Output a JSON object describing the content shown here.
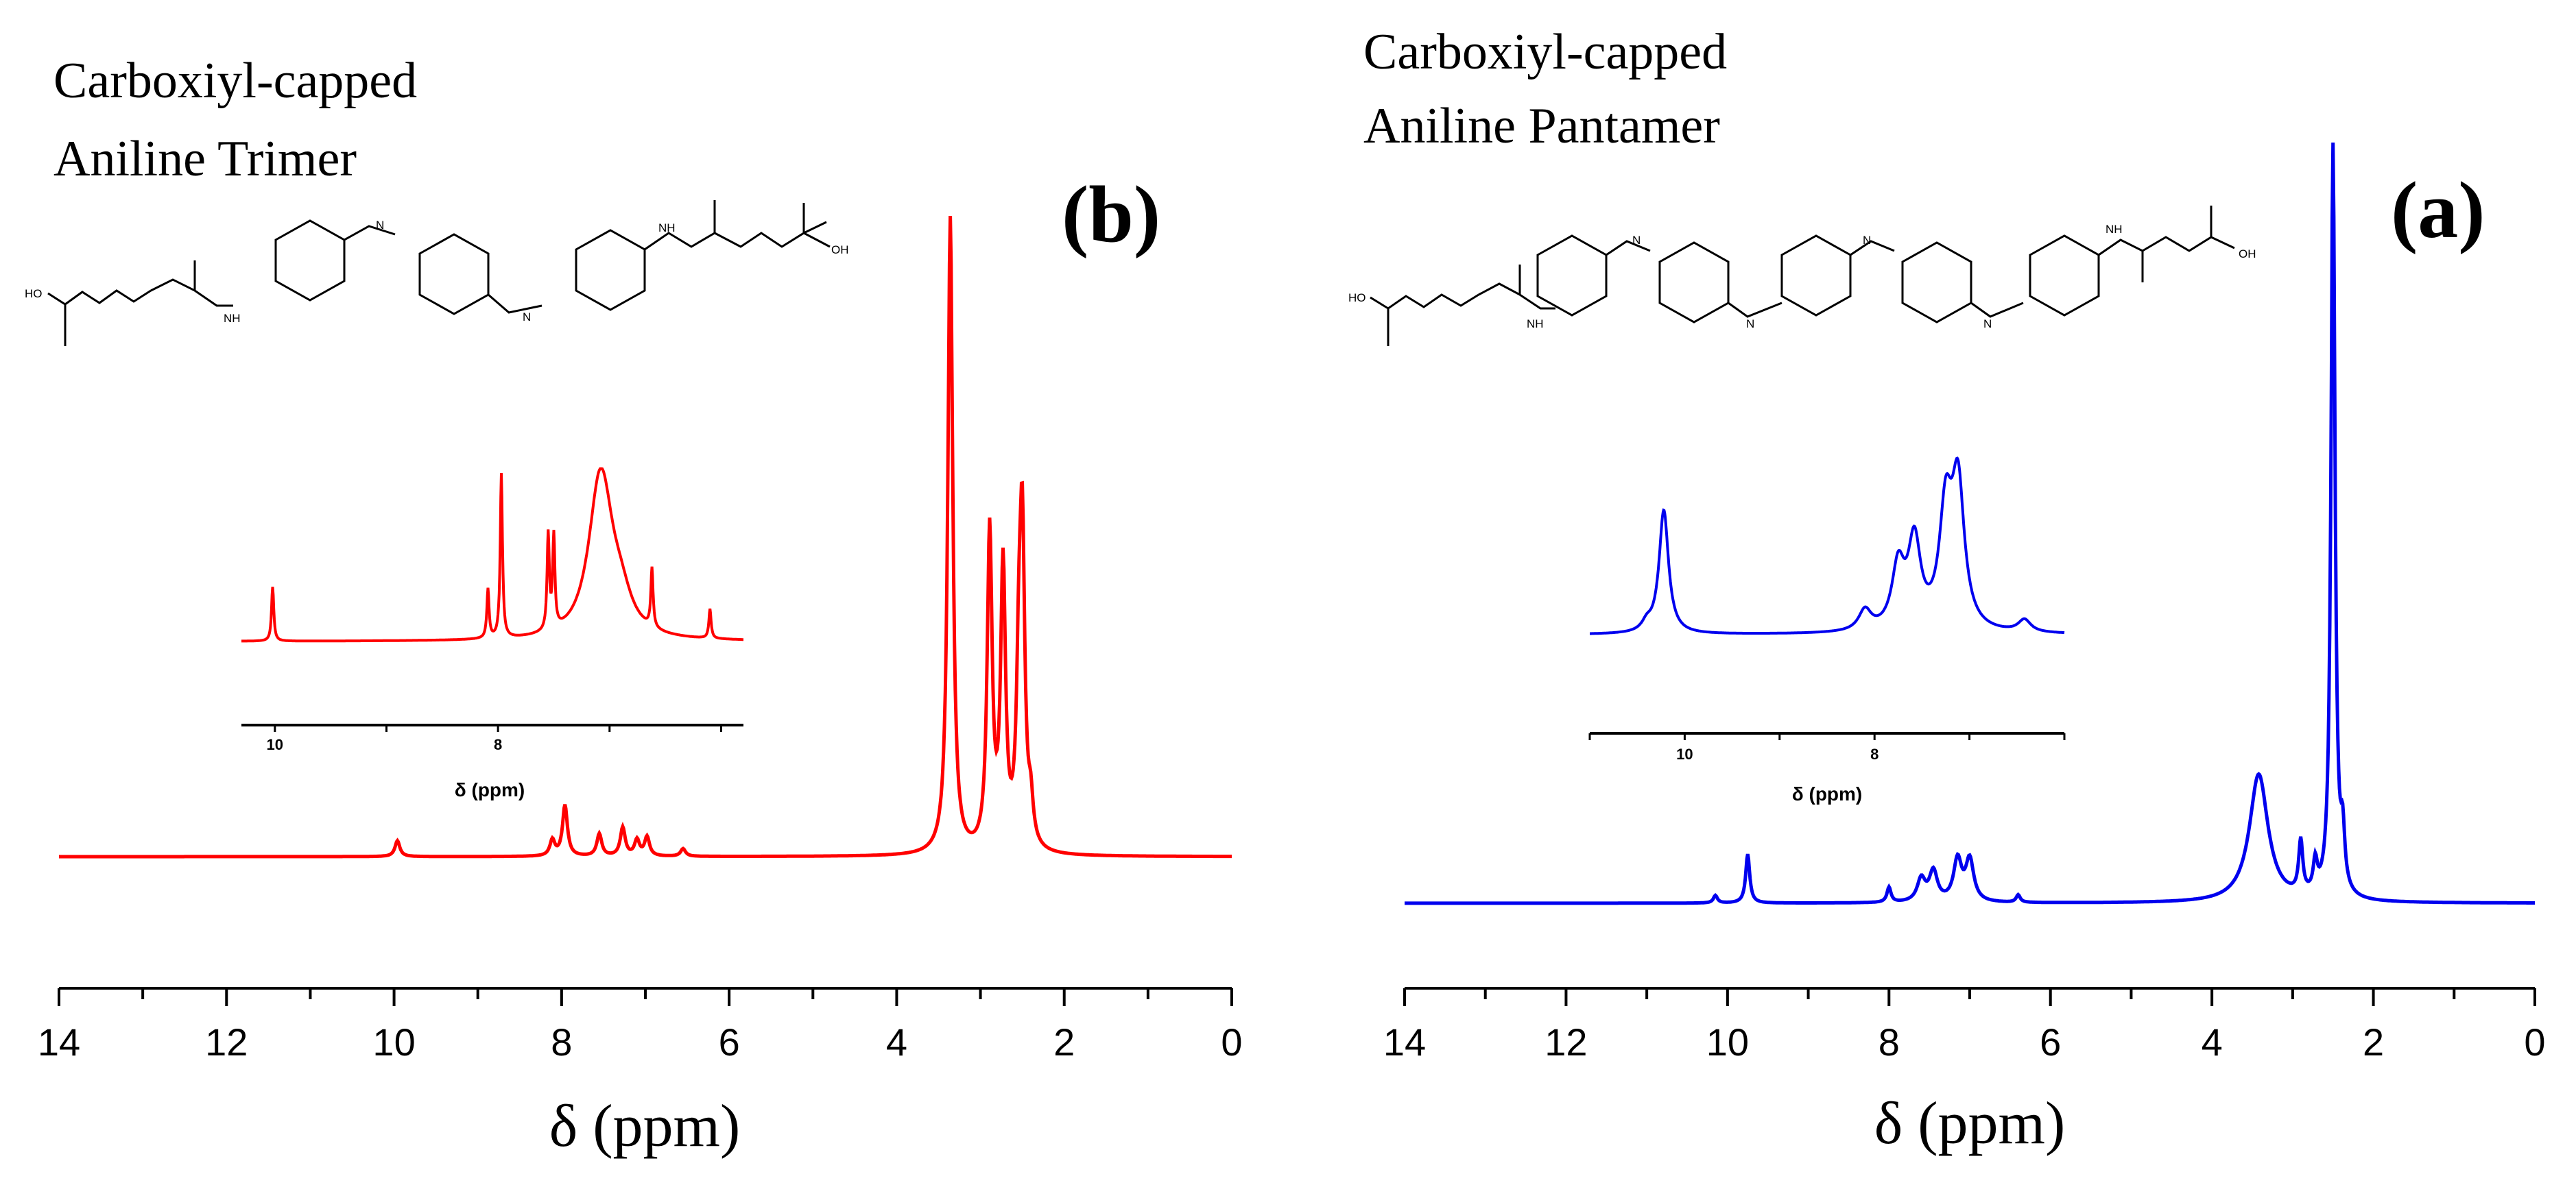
{
  "chart_data": [
    {
      "type": "line",
      "panel": "(b)",
      "title_lines": [
        "Carboxiyl-capped",
        "Aniline Trimer"
      ],
      "xlabel": "δ (ppm)",
      "xlim": [
        14,
        0
      ],
      "xticks": [
        "14",
        "12",
        "10",
        "8",
        "6",
        "4",
        "2",
        "0"
      ],
      "grid": false,
      "color": "#ff0000",
      "series": [
        {
          "name": "Carboxiyl-capped Aniline Trimer",
          "peaks": [
            {
              "ppm": 9.96,
              "rel": 0.025
            },
            {
              "ppm": 8.11,
              "rel": 0.025
            },
            {
              "ppm": 7.96,
              "rel": 0.08
            },
            {
              "ppm": 7.55,
              "rel": 0.035
            },
            {
              "ppm": 7.27,
              "rel": 0.045
            },
            {
              "ppm": 7.1,
              "rel": 0.025
            },
            {
              "ppm": 6.98,
              "rel": 0.03
            },
            {
              "ppm": 6.55,
              "rel": 0.012
            },
            {
              "ppm": 3.36,
              "rel": 1.0
            },
            {
              "ppm": 2.89,
              "rel": 0.5
            },
            {
              "ppm": 2.73,
              "rel": 0.44
            },
            {
              "ppm": 2.54,
              "rel": 0.24
            },
            {
              "ppm": 2.5,
              "rel": 0.46
            },
            {
              "ppm": 2.4,
              "rel": 0.06
            }
          ]
        }
      ],
      "inset": {
        "xlabel": "δ (ppm)",
        "xticks": [
          "10",
          "8"
        ],
        "xlim": [
          10.3,
          5.8
        ],
        "peaks": [
          {
            "ppm": 10.02,
            "rel": 0.33
          },
          {
            "ppm": 8.09,
            "rel": 0.3
          },
          {
            "ppm": 7.97,
            "rel": 1.0
          },
          {
            "ppm": 7.55,
            "rel": 0.58
          },
          {
            "ppm": 7.5,
            "rel": 0.56
          },
          {
            "ppm": 7.1,
            "rel": 0.6
          },
          {
            "ppm": 7.05,
            "rel": 0.44
          },
          {
            "ppm": 6.9,
            "rel": 0.18
          },
          {
            "ppm": 6.62,
            "rel": 0.36
          },
          {
            "ppm": 6.1,
            "rel": 0.18
          }
        ]
      },
      "molecule": {
        "ring_labels": [
          "N",
          "N",
          "NH",
          "NH",
          "HO",
          "OH"
        ]
      }
    },
    {
      "type": "line",
      "panel": "(a)",
      "title_lines": [
        "Carboxiyl-capped",
        "Aniline Pantamer"
      ],
      "xlabel": "δ (ppm)",
      "xlim": [
        14,
        0
      ],
      "xticks": [
        "14",
        "12",
        "10",
        "8",
        "6",
        "4",
        "2",
        "0"
      ],
      "grid": false,
      "color": "#0000ee",
      "series": [
        {
          "name": "Carboxiyl-capped Aniline Pantamer",
          "peaks": [
            {
              "ppm": 10.15,
              "rel": 0.01
            },
            {
              "ppm": 9.75,
              "rel": 0.065
            },
            {
              "ppm": 8.0,
              "rel": 0.02
            },
            {
              "ppm": 7.6,
              "rel": 0.03
            },
            {
              "ppm": 7.45,
              "rel": 0.04
            },
            {
              "ppm": 7.15,
              "rel": 0.055
            },
            {
              "ppm": 7.0,
              "rel": 0.055
            },
            {
              "ppm": 6.4,
              "rel": 0.01
            },
            {
              "ppm": 3.42,
              "rel": 0.17
            },
            {
              "ppm": 2.9,
              "rel": 0.07
            },
            {
              "ppm": 2.72,
              "rel": 0.04
            },
            {
              "ppm": 2.5,
              "rel": 1.0
            },
            {
              "ppm": 2.38,
              "rel": 0.07
            }
          ]
        }
      ],
      "inset": {
        "xlabel": "δ (ppm)",
        "xticks": [
          "10",
          "8"
        ],
        "xlim": [
          11.0,
          6.0
        ],
        "peaks": [
          {
            "ppm": 10.4,
            "rel": 0.04
          },
          {
            "ppm": 10.22,
            "rel": 0.6
          },
          {
            "ppm": 8.1,
            "rel": 0.1
          },
          {
            "ppm": 7.75,
            "rel": 0.3
          },
          {
            "ppm": 7.58,
            "rel": 0.42
          },
          {
            "ppm": 7.25,
            "rel": 0.55
          },
          {
            "ppm": 7.12,
            "rel": 0.68
          },
          {
            "ppm": 6.42,
            "rel": 0.06
          }
        ]
      },
      "molecule": {
        "ring_labels": [
          "N",
          "N",
          "N",
          "N",
          "NH",
          "NH",
          "HO",
          "OH"
        ]
      }
    }
  ]
}
